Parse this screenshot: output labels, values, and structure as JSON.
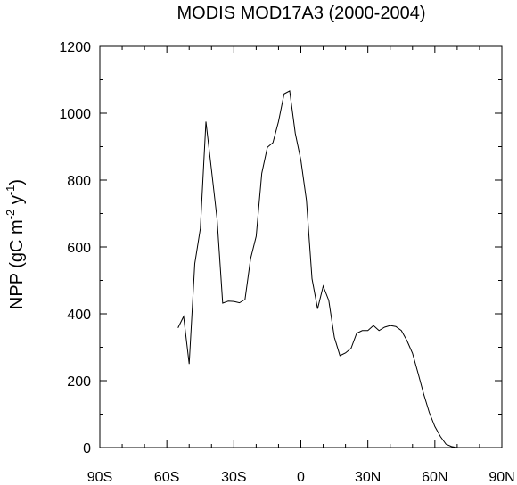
{
  "chart_data": {
    "type": "line",
    "title": "MODIS MOD17A3 (2000-2004)",
    "ylabel_main": "NPP (gC m",
    "ylabel_sup1": "-2",
    "ylabel_mid": " y",
    "ylabel_sup2": "-1",
    "ylabel_end": ")",
    "xlim": [
      -90,
      90
    ],
    "ylim": [
      0,
      1200
    ],
    "x_ticks": [
      {
        "value": -90,
        "label": "90S"
      },
      {
        "value": -60,
        "label": "60S"
      },
      {
        "value": -30,
        "label": "30S"
      },
      {
        "value": 0,
        "label": "0"
      },
      {
        "value": 30,
        "label": "30N"
      },
      {
        "value": 60,
        "label": "60N"
      },
      {
        "value": 90,
        "label": "90N"
      }
    ],
    "y_ticks": [
      {
        "value": 0,
        "label": "0"
      },
      {
        "value": 200,
        "label": "200"
      },
      {
        "value": 400,
        "label": "400"
      },
      {
        "value": 600,
        "label": "600"
      },
      {
        "value": 800,
        "label": "800"
      },
      {
        "value": 1000,
        "label": "1000"
      },
      {
        "value": 1200,
        "label": "1200"
      }
    ],
    "series": [
      {
        "color": "#000000",
        "x": [
          -55,
          -52.5,
          -50,
          -47.5,
          -45,
          -42.5,
          -40,
          -37.5,
          -35,
          -32.5,
          -30,
          -27.5,
          -25,
          -22.5,
          -20,
          -17.5,
          -15,
          -12.5,
          -10,
          -7.5,
          -5,
          -2.5,
          0,
          2.5,
          5,
          7.5,
          10,
          12.5,
          15,
          17.5,
          20,
          22.5,
          25,
          27.5,
          30,
          32.5,
          35,
          37.5,
          40,
          42.5,
          45,
          47.5,
          50,
          52.5,
          55,
          57.5,
          60,
          62.5,
          65,
          67.5,
          70,
          72.5,
          75,
          77.5,
          80,
          82.5,
          85
        ],
        "y": [
          358,
          392,
          250,
          550,
          655,
          975,
          830,
          683,
          432,
          438,
          437,
          433,
          443,
          565,
          632,
          820,
          898,
          912,
          975,
          1058,
          1067,
          940,
          860,
          740,
          505,
          415,
          483,
          440,
          330,
          275,
          283,
          297,
          342,
          350,
          350,
          365,
          350,
          360,
          365,
          362,
          350,
          320,
          282,
          222,
          160,
          105,
          63,
          33,
          10,
          3,
          0,
          0,
          0,
          0,
          0,
          0,
          0
        ]
      }
    ]
  }
}
